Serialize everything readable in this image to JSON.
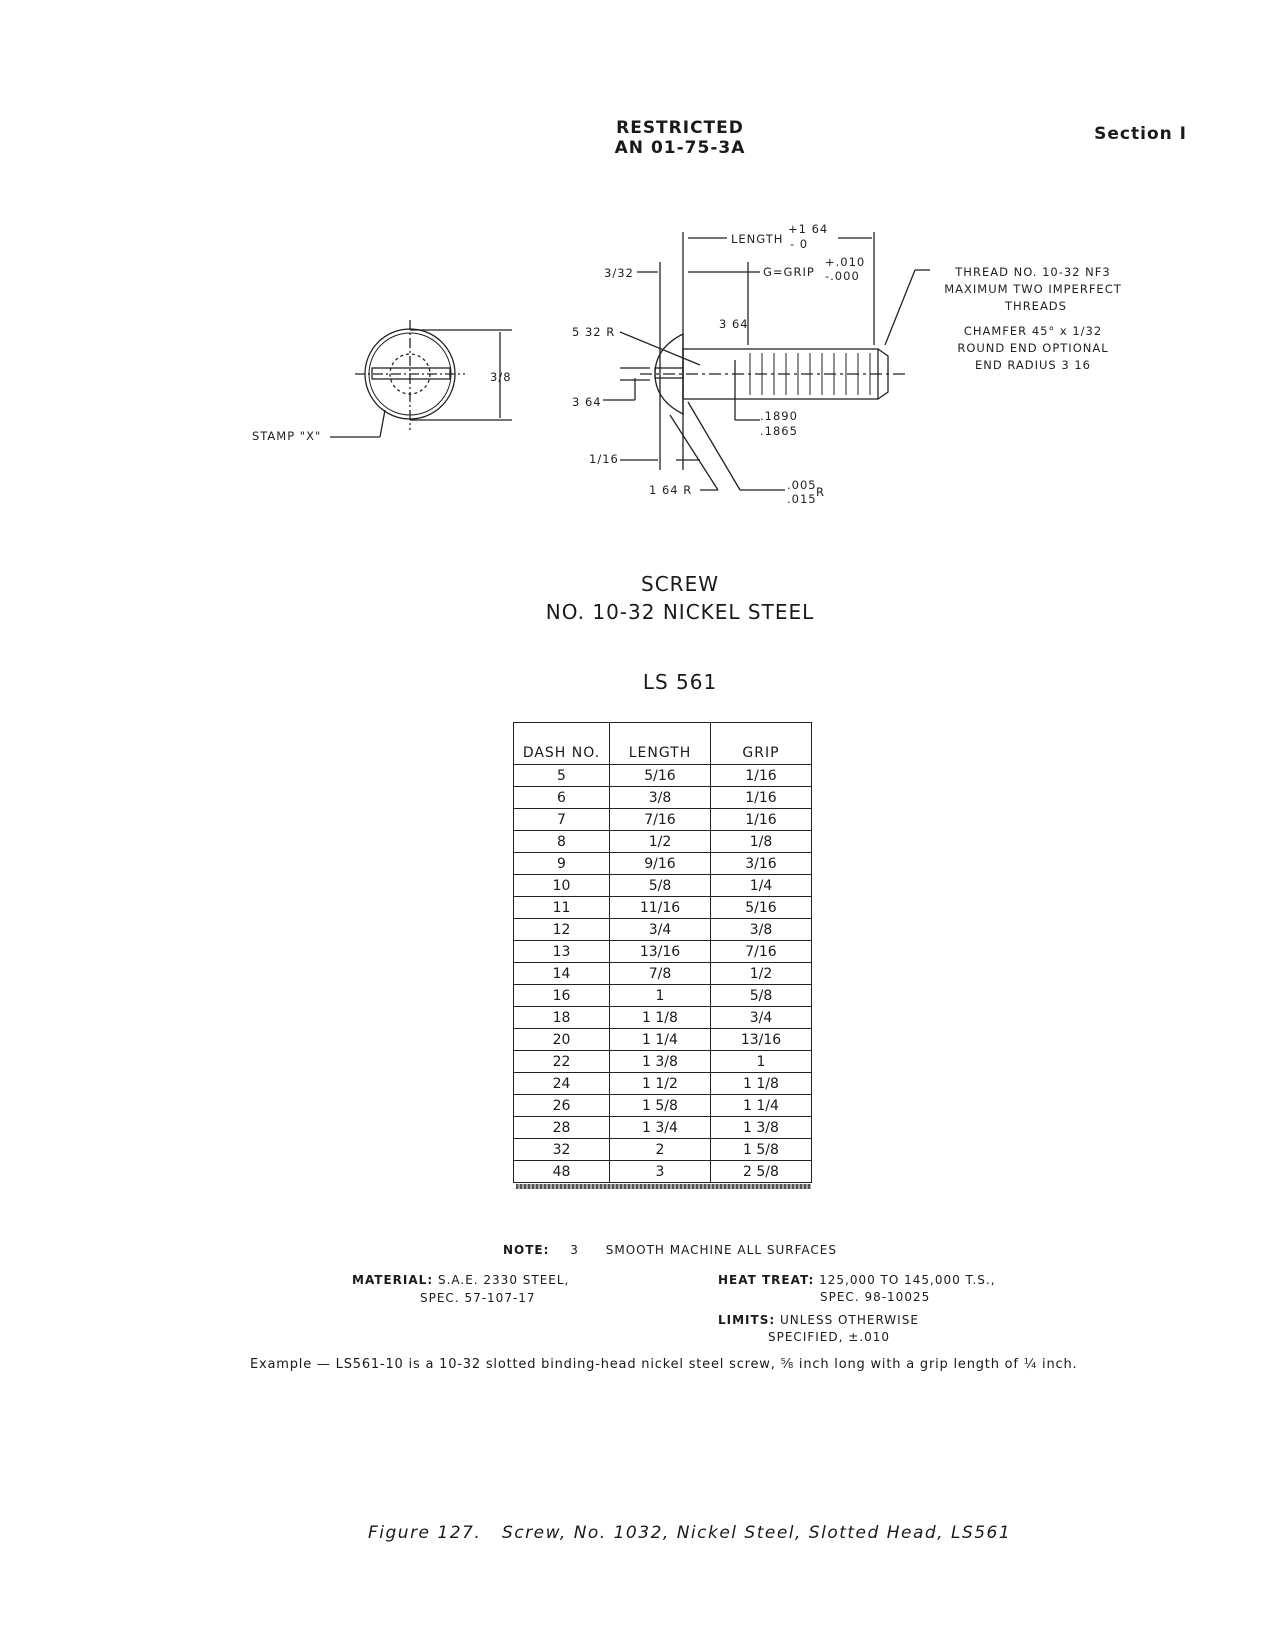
{
  "header": {
    "line1": "RESTRICTED",
    "line2": "AN 01-75-3A",
    "section": "Section I"
  },
  "drawing": {
    "length_label": "LENGTH",
    "length_tol_plus": "+1 64",
    "length_tol_minus": "- 0",
    "grip_label": "G=GRIP",
    "grip_tol_plus": "+.010",
    "grip_tol_minus": "-.000",
    "dim_3_32": "3/32",
    "dim_5_32_r": "5 32 R",
    "dim_3_64_top": "3 64",
    "dim_3_64_slot": "3 64",
    "dim_1_16": "1/16",
    "dim_1_64_r": "1 64 R",
    "dia_max": ".1890",
    "dia_min": ".1865",
    "fillet_1": ".005",
    "fillet_2": ".015",
    "fillet_r": "R",
    "head_dia": "3/8",
    "stamp": "STAMP \"X\"",
    "thread_note": [
      "THREAD NO. 10-32 NF3",
      "MAXIMUM TWO IMPERFECT",
      "THREADS"
    ],
    "chamfer_note": [
      "CHAMFER 45° x 1/32",
      "ROUND END OPTIONAL",
      "END RADIUS 3 16"
    ]
  },
  "title": {
    "line1": "SCREW",
    "line2": "NO. 10-32 NICKEL STEEL",
    "part": "LS 561"
  },
  "table": {
    "headers": [
      "DASH NO.",
      "LENGTH",
      "GRIP"
    ],
    "rows": [
      [
        "5",
        "5/16",
        "1/16"
      ],
      [
        "6",
        "3/8",
        "1/16"
      ],
      [
        "7",
        "7/16",
        "1/16"
      ],
      [
        "8",
        "1/2",
        "1/8"
      ],
      [
        "9",
        "9/16",
        "3/16"
      ],
      [
        "10",
        "5/8",
        "1/4"
      ],
      [
        "11",
        "11/16",
        "5/16"
      ],
      [
        "12",
        "3/4",
        "3/8"
      ],
      [
        "13",
        "13/16",
        "7/16"
      ],
      [
        "14",
        "7/8",
        "1/2"
      ],
      [
        "16",
        "1",
        "5/8"
      ],
      [
        "18",
        "1 1/8",
        "3/4"
      ],
      [
        "20",
        "1 1/4",
        "13/16"
      ],
      [
        "22",
        "1 3/8",
        "1"
      ],
      [
        "24",
        "1 1/2",
        "1 1/8"
      ],
      [
        "26",
        "1 5/8",
        "1 1/4"
      ],
      [
        "28",
        "1 3/4",
        "1 3/8"
      ],
      [
        "32",
        "2",
        "1 5/8"
      ],
      [
        "48",
        "3",
        "2 5/8"
      ]
    ]
  },
  "notes": {
    "note_label": "NOTE:",
    "note_num": "3",
    "note_text": "SMOOTH MACHINE ALL SURFACES",
    "material_label": "MATERIAL:",
    "material_1": "S.A.E. 2330 STEEL,",
    "material_2": "SPEC. 57-107-17",
    "heat_label": "HEAT TREAT:",
    "heat_1": "125,000 TO 145,000 T.S.,",
    "heat_2": "SPEC. 98-10025",
    "limits_label": "LIMITS:",
    "limits_1": "UNLESS OTHERWISE",
    "limits_2": "SPECIFIED, ±.010"
  },
  "example": "Example — LS561-10 is a 10-32 slotted binding-head nickel steel screw, ⅝ inch long with a grip length of ¼ inch.",
  "caption": "Figure 127.   Screw, No. 1032, Nickel Steel, Slotted Head, LS561"
}
